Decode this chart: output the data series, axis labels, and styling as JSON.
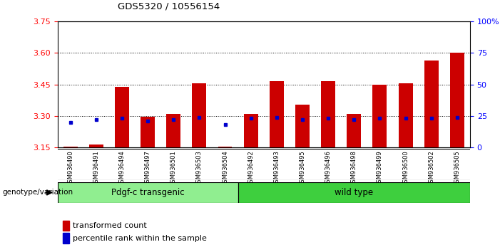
{
  "title": "GDS5320 / 10556154",
  "samples": [
    "GSM936490",
    "GSM936491",
    "GSM936494",
    "GSM936497",
    "GSM936501",
    "GSM936503",
    "GSM936504",
    "GSM936492",
    "GSM936493",
    "GSM936495",
    "GSM936496",
    "GSM936498",
    "GSM936499",
    "GSM936500",
    "GSM936502",
    "GSM936505"
  ],
  "red_values": [
    3.152,
    3.165,
    3.44,
    3.295,
    3.31,
    3.455,
    3.153,
    3.31,
    3.465,
    3.355,
    3.465,
    3.31,
    3.45,
    3.455,
    3.565,
    3.6
  ],
  "blue_percentiles": [
    20,
    22,
    23,
    21,
    22,
    24,
    18,
    23,
    24,
    22,
    23,
    22,
    23,
    23,
    23,
    24
  ],
  "ylim_left": [
    3.15,
    3.75
  ],
  "ylim_right": [
    0,
    100
  ],
  "yticks_left": [
    3.15,
    3.3,
    3.45,
    3.6,
    3.75
  ],
  "yticks_right": [
    0,
    25,
    50,
    75,
    100
  ],
  "grid_values": [
    3.3,
    3.45,
    3.6
  ],
  "group1_label": "Pdgf-c transgenic",
  "group2_label": "wild type",
  "legend1": "transformed count",
  "legend2": "percentile rank within the sample",
  "group_label": "genotype/variation",
  "bar_color": "#cc0000",
  "dot_color": "#0000cc",
  "baseline": 3.15,
  "group1_bg": "#90ee90",
  "group2_bg": "#3ecf3e",
  "group1_n": 7,
  "group2_n": 9,
  "tick_area_bg": "#c8c8c8"
}
